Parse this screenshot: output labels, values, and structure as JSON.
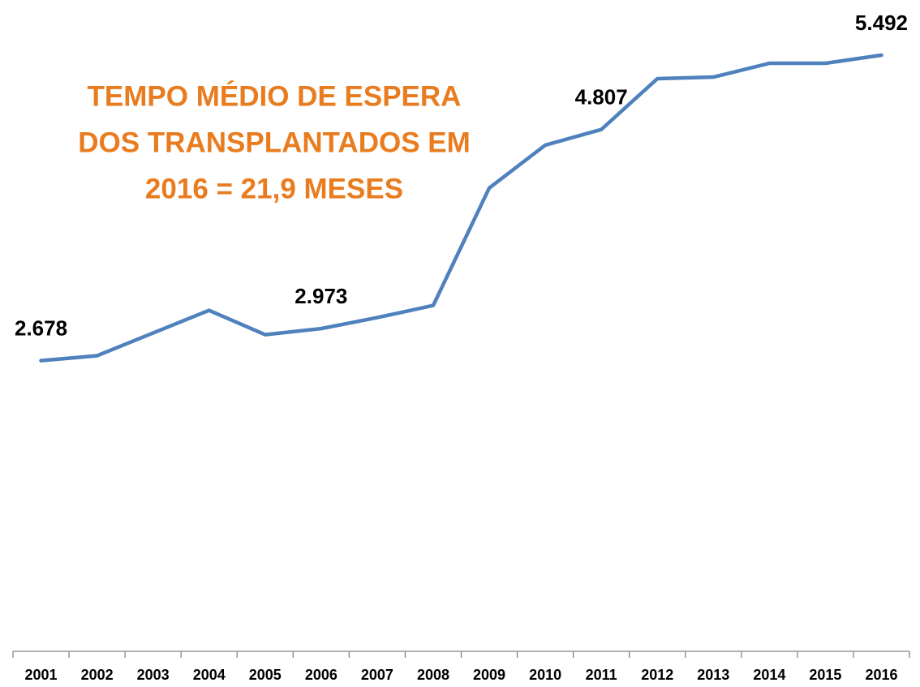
{
  "chart_data": {
    "type": "line",
    "annotation": [
      "TEMPO MÉDIO DE ESPERA",
      "DOS TRANSPLANTADOS EM",
      "2016 =  21,9 MESES"
    ],
    "categories": [
      "2001",
      "2002",
      "2003",
      "2004",
      "2005",
      "2006",
      "2007",
      "2008",
      "2009",
      "2010",
      "2011",
      "2012",
      "2013",
      "2014",
      "2015",
      "2016"
    ],
    "series": [
      {
        "color": "#4F81BD",
        "values": [
          2678,
          2723,
          2932,
          3141,
          2917,
          2973,
          3074,
          3186,
          4268,
          4663,
          4807,
          5275,
          5290,
          5417,
          5417,
          5492
        ],
        "value_labels": [
          "2.678",
          null,
          null,
          null,
          null,
          "2.973",
          null,
          null,
          null,
          null,
          "4.807",
          null,
          null,
          null,
          null,
          "5.492"
        ]
      }
    ],
    "ylim": [
      0,
      6000
    ]
  }
}
